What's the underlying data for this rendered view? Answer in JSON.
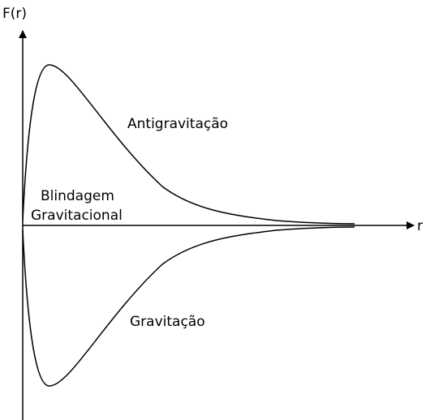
{
  "axes": {
    "y_label": "F(r)",
    "x_label": "r"
  },
  "regions": {
    "upper": "Antigravitação",
    "shield_line1": "Blindagem",
    "shield_line2": "Gravitacional",
    "lower": "Gravitação"
  }
}
